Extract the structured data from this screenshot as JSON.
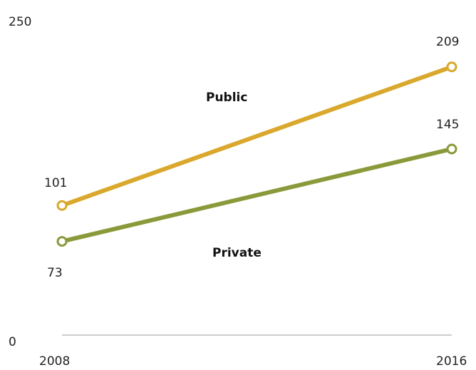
{
  "chart_data": {
    "type": "line",
    "x": [
      "2008",
      "2016"
    ],
    "y_ticks": [
      "250",
      "0"
    ],
    "ylim": [
      0,
      250
    ],
    "grid": false,
    "series": [
      {
        "name": "Public",
        "values": [
          101,
          209
        ],
        "labels": [
          "101",
          "209"
        ],
        "color": "#d9a82c"
      },
      {
        "name": "Private",
        "values": [
          73,
          145
        ],
        "labels": [
          "73",
          "145"
        ],
        "color": "#8a9a3a"
      }
    ]
  }
}
